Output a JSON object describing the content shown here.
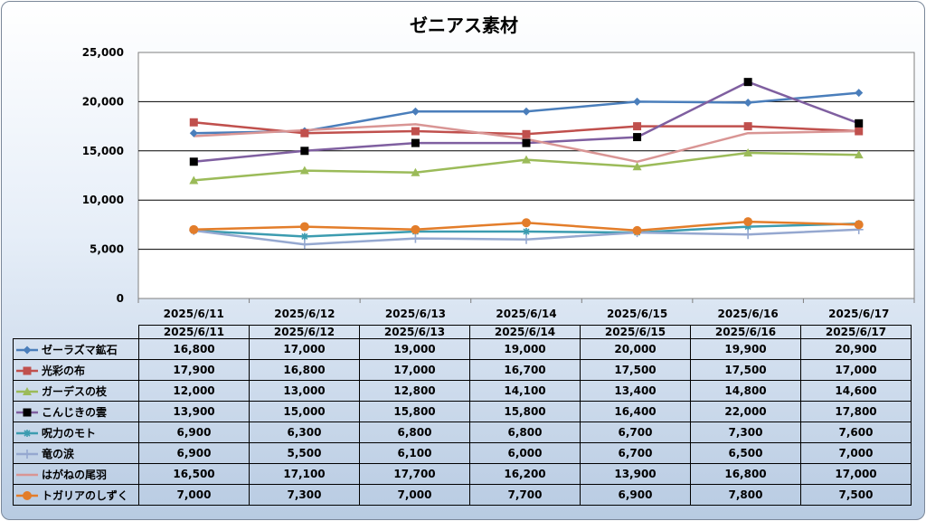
{
  "chart_data": {
    "type": "line",
    "title": "ゼニアス素材",
    "categories": [
      "2025/6/11",
      "2025/6/12",
      "2025/6/13",
      "2025/6/14",
      "2025/6/15",
      "2025/6/16",
      "2025/6/17"
    ],
    "y_ticks": [
      "0",
      "5,000",
      "10,000",
      "15,000",
      "20,000",
      "25,000"
    ],
    "ylim": [
      0,
      25000
    ],
    "grid": true,
    "legend": "data-table",
    "series": [
      {
        "name": "ゼーラズマ鉱石",
        "color": "#4a7ebb",
        "marker": "diamond",
        "values": [
          16800,
          17000,
          19000,
          19000,
          20000,
          19900,
          20900
        ],
        "labels": [
          "16,800",
          "17,000",
          "19,000",
          "19,000",
          "20,000",
          "19,900",
          "20,900"
        ]
      },
      {
        "name": "光彩の布",
        "color": "#c0504d",
        "marker": "square",
        "values": [
          17900,
          16800,
          17000,
          16700,
          17500,
          17500,
          17000
        ],
        "labels": [
          "17,900",
          "16,800",
          "17,000",
          "16,700",
          "17,500",
          "17,500",
          "17,000"
        ]
      },
      {
        "name": "ガーデスの枝",
        "color": "#9bbb59",
        "marker": "triangle",
        "values": [
          12000,
          13000,
          12800,
          14100,
          13400,
          14800,
          14600
        ],
        "labels": [
          "12,000",
          "13,000",
          "12,800",
          "14,100",
          "13,400",
          "14,800",
          "14,600"
        ]
      },
      {
        "name": "こんじきの雲",
        "color": "#7f5fa0",
        "markerColor": "#000000",
        "marker": "square",
        "values": [
          13900,
          15000,
          15800,
          15800,
          16400,
          22000,
          17800
        ],
        "labels": [
          "13,900",
          "15,000",
          "15,800",
          "15,800",
          "16,400",
          "22,000",
          "17,800"
        ]
      },
      {
        "name": "呪力のモト",
        "color": "#3c9cb0",
        "marker": "asterisk",
        "values": [
          6900,
          6300,
          6800,
          6800,
          6700,
          7300,
          7600
        ],
        "labels": [
          "6,900",
          "6,300",
          "6,800",
          "6,800",
          "6,700",
          "7,300",
          "7,600"
        ]
      },
      {
        "name": "竜の涙",
        "color": "#95a8d0",
        "marker": "plus",
        "values": [
          6900,
          5500,
          6100,
          6000,
          6700,
          6500,
          7000
        ],
        "labels": [
          "6,900",
          "5,500",
          "6,100",
          "6,000",
          "6,700",
          "6,500",
          "7,000"
        ]
      },
      {
        "name": "はがねの尾羽",
        "color": "#d99594",
        "marker": "none",
        "values": [
          16500,
          17100,
          17700,
          16200,
          13900,
          16800,
          17000
        ],
        "labels": [
          "16,500",
          "17,100",
          "17,700",
          "16,200",
          "13,900",
          "16,800",
          "17,000"
        ]
      },
      {
        "name": "トガリアのしずく",
        "color": "#e37d2a",
        "marker": "circle",
        "values": [
          7000,
          7300,
          7000,
          7700,
          6900,
          7800,
          7500
        ],
        "labels": [
          "7,000",
          "7,300",
          "7,000",
          "7,700",
          "6,900",
          "7,800",
          "7,500"
        ]
      }
    ]
  }
}
